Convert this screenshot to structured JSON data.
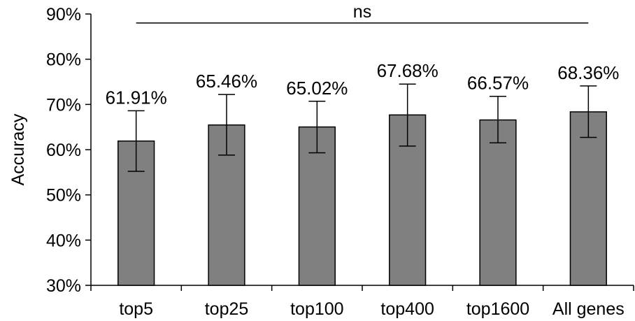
{
  "chart_data": {
    "type": "bar",
    "title": "",
    "xlabel": "",
    "ylabel": "Accuracy",
    "ylim": [
      0.3,
      0.9
    ],
    "yticks": [
      "30%",
      "40%",
      "50%",
      "60%",
      "70%",
      "80%",
      "90%"
    ],
    "categories": [
      "top5",
      "top25",
      "top100",
      "top400",
      "top1600",
      "All genes"
    ],
    "values": [
      0.6191,
      0.6546,
      0.6502,
      0.6768,
      0.6657,
      0.6836
    ],
    "data_labels": [
      "61.91%",
      "65.46%",
      "65.02%",
      "67.68%",
      "66.57%",
      "68.36%"
    ],
    "error_low": [
      0.552,
      0.588,
      0.593,
      0.608,
      0.615,
      0.627
    ],
    "error_high": [
      0.686,
      0.722,
      0.707,
      0.745,
      0.718,
      0.741
    ],
    "bar_color": "#808080",
    "grid": false,
    "legend": "none",
    "annotation": {
      "text": "ns",
      "type": "significance-bracket",
      "y": 0.88
    }
  }
}
